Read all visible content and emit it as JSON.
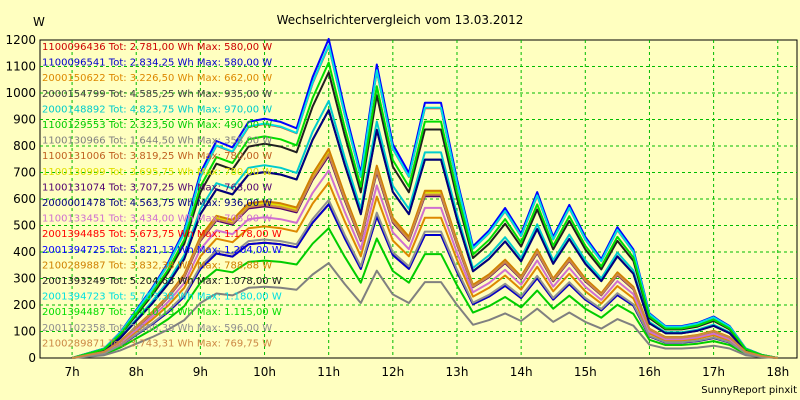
{
  "chart_data": {
    "type": "line",
    "title": "Wechselrichtervergleich vom 13.03.2012",
    "ylabel": "W",
    "xlabel": "",
    "footer": "SunnyReport pinxit",
    "ylim": [
      0,
      1200
    ],
    "yticks": [
      0,
      100,
      200,
      300,
      400,
      500,
      600,
      700,
      800,
      900,
      1000,
      1100,
      1200
    ],
    "xlim": [
      6.5,
      18.3
    ],
    "xticks": [
      {
        "value": 7,
        "label": "7h"
      },
      {
        "value": 8,
        "label": "8h"
      },
      {
        "value": 9,
        "label": "9h"
      },
      {
        "value": 10,
        "label": "10h"
      },
      {
        "value": 11,
        "label": "11h"
      },
      {
        "value": 12,
        "label": "12h"
      },
      {
        "value": 13,
        "label": "13h"
      },
      {
        "value": 14,
        "label": "14h"
      },
      {
        "value": 15,
        "label": "15h"
      },
      {
        "value": 16,
        "label": "16h"
      },
      {
        "value": 17,
        "label": "17h"
      },
      {
        "value": 18,
        "label": "18h"
      }
    ],
    "grid": true,
    "x": [
      7.0,
      7.5,
      7.75,
      8.0,
      8.25,
      8.5,
      8.75,
      9.0,
      9.25,
      9.5,
      9.75,
      10.0,
      10.25,
      10.5,
      10.75,
      11.0,
      11.25,
      11.5,
      11.75,
      12.0,
      12.25,
      12.5,
      12.75,
      13.0,
      13.25,
      13.5,
      13.75,
      14.0,
      14.25,
      14.5,
      14.75,
      15.0,
      15.25,
      15.5,
      15.75,
      16.0,
      16.25,
      16.5,
      16.75,
      17.0,
      17.25,
      17.5,
      17.75,
      18.0
    ],
    "base_profile": [
      0,
      0.03,
      0.08,
      0.15,
      0.22,
      0.3,
      0.4,
      0.58,
      0.68,
      0.66,
      0.74,
      0.75,
      0.74,
      0.72,
      0.88,
      1.0,
      0.78,
      0.58,
      0.92,
      0.67,
      0.58,
      0.8,
      0.8,
      0.56,
      0.35,
      0.4,
      0.47,
      0.39,
      0.52,
      0.38,
      0.48,
      0.38,
      0.31,
      0.41,
      0.34,
      0.14,
      0.1,
      0.1,
      0.11,
      0.13,
      0.1,
      0.03,
      0.01,
      0
    ],
    "series": [
      {
        "label": "1100096436 Tot: 2.781,00 Wh Max: 580,00 W",
        "color": "#cc0000",
        "max": 580
      },
      {
        "label": "1100096541 Tot: 2.834,25 Wh Max: 580,00 W",
        "color": "#0000cc",
        "max": 580
      },
      {
        "label": "2000150622 Tot: 3.226,50 Wh Max: 662,00 W",
        "color": "#dd8800",
        "max": 662
      },
      {
        "label": "2000154799 Tot: 4.585,25 Wh Max: 935,00 W",
        "color": "#404040",
        "max": 935
      },
      {
        "label": "2000148892 Tot: 4.823,75 Wh Max: 970,00 W",
        "color": "#00cccc",
        "max": 970
      },
      {
        "label": "1100129553 Tot: 2.323,50 Wh Max: 490,00 W",
        "color": "#00cc00",
        "max": 490
      },
      {
        "label": "1100130966 Tot: 1.644,50 Wh Max: 358,00 W",
        "color": "#808080",
        "max": 358
      },
      {
        "label": "1100131006 Tot: 3.819,25 Wh Max: 780,00 W",
        "color": "#c06020",
        "max": 780
      },
      {
        "label": "1100130999 Tot: 3.695,75 Wh Max: 780,00 W",
        "color": "#e0e000",
        "max": 780
      },
      {
        "label": "1100131074 Tot: 3.707,25 Wh Max: 763,00 W",
        "color": "#500070",
        "max": 763
      },
      {
        "label": "2000001478 Tot: 4.563,75 Wh Max: 936,00 W",
        "color": "#000080",
        "max": 936
      },
      {
        "label": "1100133451 Tot: 3.434,00 Wh Max: 708,00 W",
        "color": "#d070d0",
        "max": 708
      },
      {
        "label": "2001394485 Tot: 5.673,75 Wh Max: 1.178,00 W",
        "color": "#ff0000",
        "max": 1178
      },
      {
        "label": "2001394725 Tot: 5.821,13 Wh Max: 1.204,00 W",
        "color": "#0000ff",
        "max": 1204
      },
      {
        "label": "2100289887 Tot: 3.832,38 Wh Max: 788,88 W",
        "color": "#d08000",
        "max": 788.88
      },
      {
        "label": "2001393249 Tot: 5.204,63 Wh Max: 1.078,00 W",
        "color": "#202020",
        "max": 1078
      },
      {
        "label": "2001394723 Tot: 5.703,38 Wh Max: 1.180,00 W",
        "color": "#00e0e0",
        "max": 1180
      },
      {
        "label": "2001394487 Tot: 5.410,13 Wh Max: 1.115,00 W",
        "color": "#00dd00",
        "max": 1115
      },
      {
        "label": "2001102358 Tot: 2.880,38 Wh Max: 596,00 W",
        "color": "#909090",
        "max": 596
      },
      {
        "label": "2100289871 Tot: 3.743,31 Wh Max: 769,75 W",
        "color": "#cc8844",
        "max": 769.75
      }
    ]
  }
}
